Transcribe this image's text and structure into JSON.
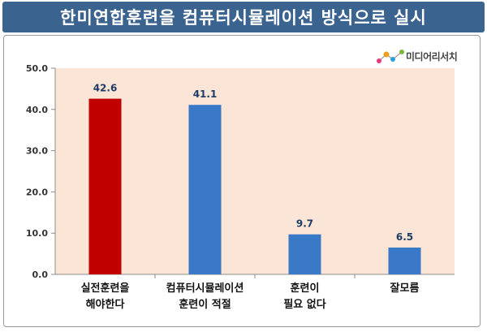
{
  "title": "한미연합훈련을 컴퓨터시뮬레이션 방식으로 실시",
  "logo": {
    "text": "미디어리서치"
  },
  "colors": {
    "title_bg": "#3b6390",
    "plot_bg": "#fbe5d6",
    "bar_highlight": "#c00000",
    "bar_default": "#3a78c8",
    "label_color": "#1f3c66"
  },
  "chart_data": {
    "type": "bar",
    "categories": [
      "실전훈련을\n해야한다",
      "컴퓨터시뮬레이션\n훈련이 적절",
      "훈련이\n필요 없다",
      "잘모름"
    ],
    "values": [
      42.6,
      41.1,
      9.7,
      6.5
    ],
    "value_labels": [
      "42.6",
      "41.1",
      "9.7",
      "6.5"
    ],
    "highlight_index": 0,
    "ylim": [
      0,
      50
    ],
    "yticks": [
      0,
      10,
      20,
      30,
      40,
      50
    ],
    "ytick_labels": [
      "0.0",
      "10.0",
      "20.0",
      "30.0",
      "40.0",
      "50.0"
    ],
    "grid": false,
    "legend": "none",
    "xlabel": "",
    "ylabel": ""
  }
}
